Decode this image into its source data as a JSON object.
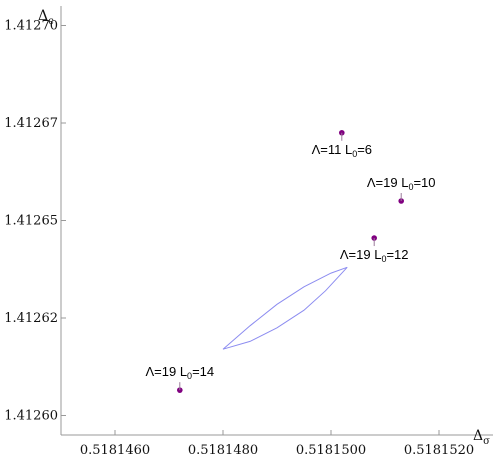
{
  "chart_data": {
    "type": "scatter",
    "xlabel": {
      "base": "Δ",
      "sub": "σ"
    },
    "ylabel": {
      "base": "Δ",
      "sub": "ϵ"
    },
    "xlim": [
      0.518145,
      0.518153
    ],
    "ylim": [
      1.412595,
      1.412705
    ],
    "x_ticks": [
      "0.5181460",
      "0.5181480",
      "0.5181500",
      "0.5181520"
    ],
    "x_tick_values": [
      0.518146,
      0.518148,
      0.51815,
      0.518152
    ],
    "y_ticks": [
      "1.41260",
      "1.41262",
      "1.41265",
      "1.41267",
      "1.41270"
    ],
    "y_tick_values": [
      1.4126,
      1.412625,
      1.41265,
      1.412675,
      1.4127
    ],
    "colors": {
      "point": "#800080",
      "region": "#8c8cf0",
      "axis": "#999999",
      "leader": "#9a7a9a"
    },
    "points": [
      {
        "x": 0.5181502,
        "y": 1.4126725,
        "label": {
          "lambda": "Λ=11",
          "L": "L",
          "sub": "0",
          "value": "=6"
        }
      },
      {
        "x": 0.5181513,
        "y": 1.412655,
        "label": {
          "lambda": "Λ=19",
          "L": "L",
          "sub": "0",
          "value": "=10"
        }
      },
      {
        "x": 0.5181508,
        "y": 1.4126455,
        "label": {
          "lambda": "Λ=19",
          "L": "L",
          "sub": "0",
          "value": "=12"
        }
      },
      {
        "x": 0.5181472,
        "y": 1.4126065,
        "label": {
          "lambda": "Λ=19",
          "L": "L",
          "sub": "0",
          "value": "=14"
        }
      }
    ],
    "region": {
      "upper": [
        [
          0.518148,
          1.412617
        ],
        [
          0.5181485,
          1.412623
        ],
        [
          0.518149,
          1.4126285
        ],
        [
          0.5181495,
          1.412633
        ],
        [
          0.51815,
          1.4126365
        ],
        [
          0.5181503,
          1.412638
        ]
      ],
      "lower": [
        [
          0.5181503,
          1.412638
        ],
        [
          0.5181499,
          1.412632
        ],
        [
          0.5181495,
          1.412627
        ],
        [
          0.518149,
          1.4126225
        ],
        [
          0.5181485,
          1.412619
        ],
        [
          0.518148,
          1.412617
        ]
      ]
    }
  }
}
